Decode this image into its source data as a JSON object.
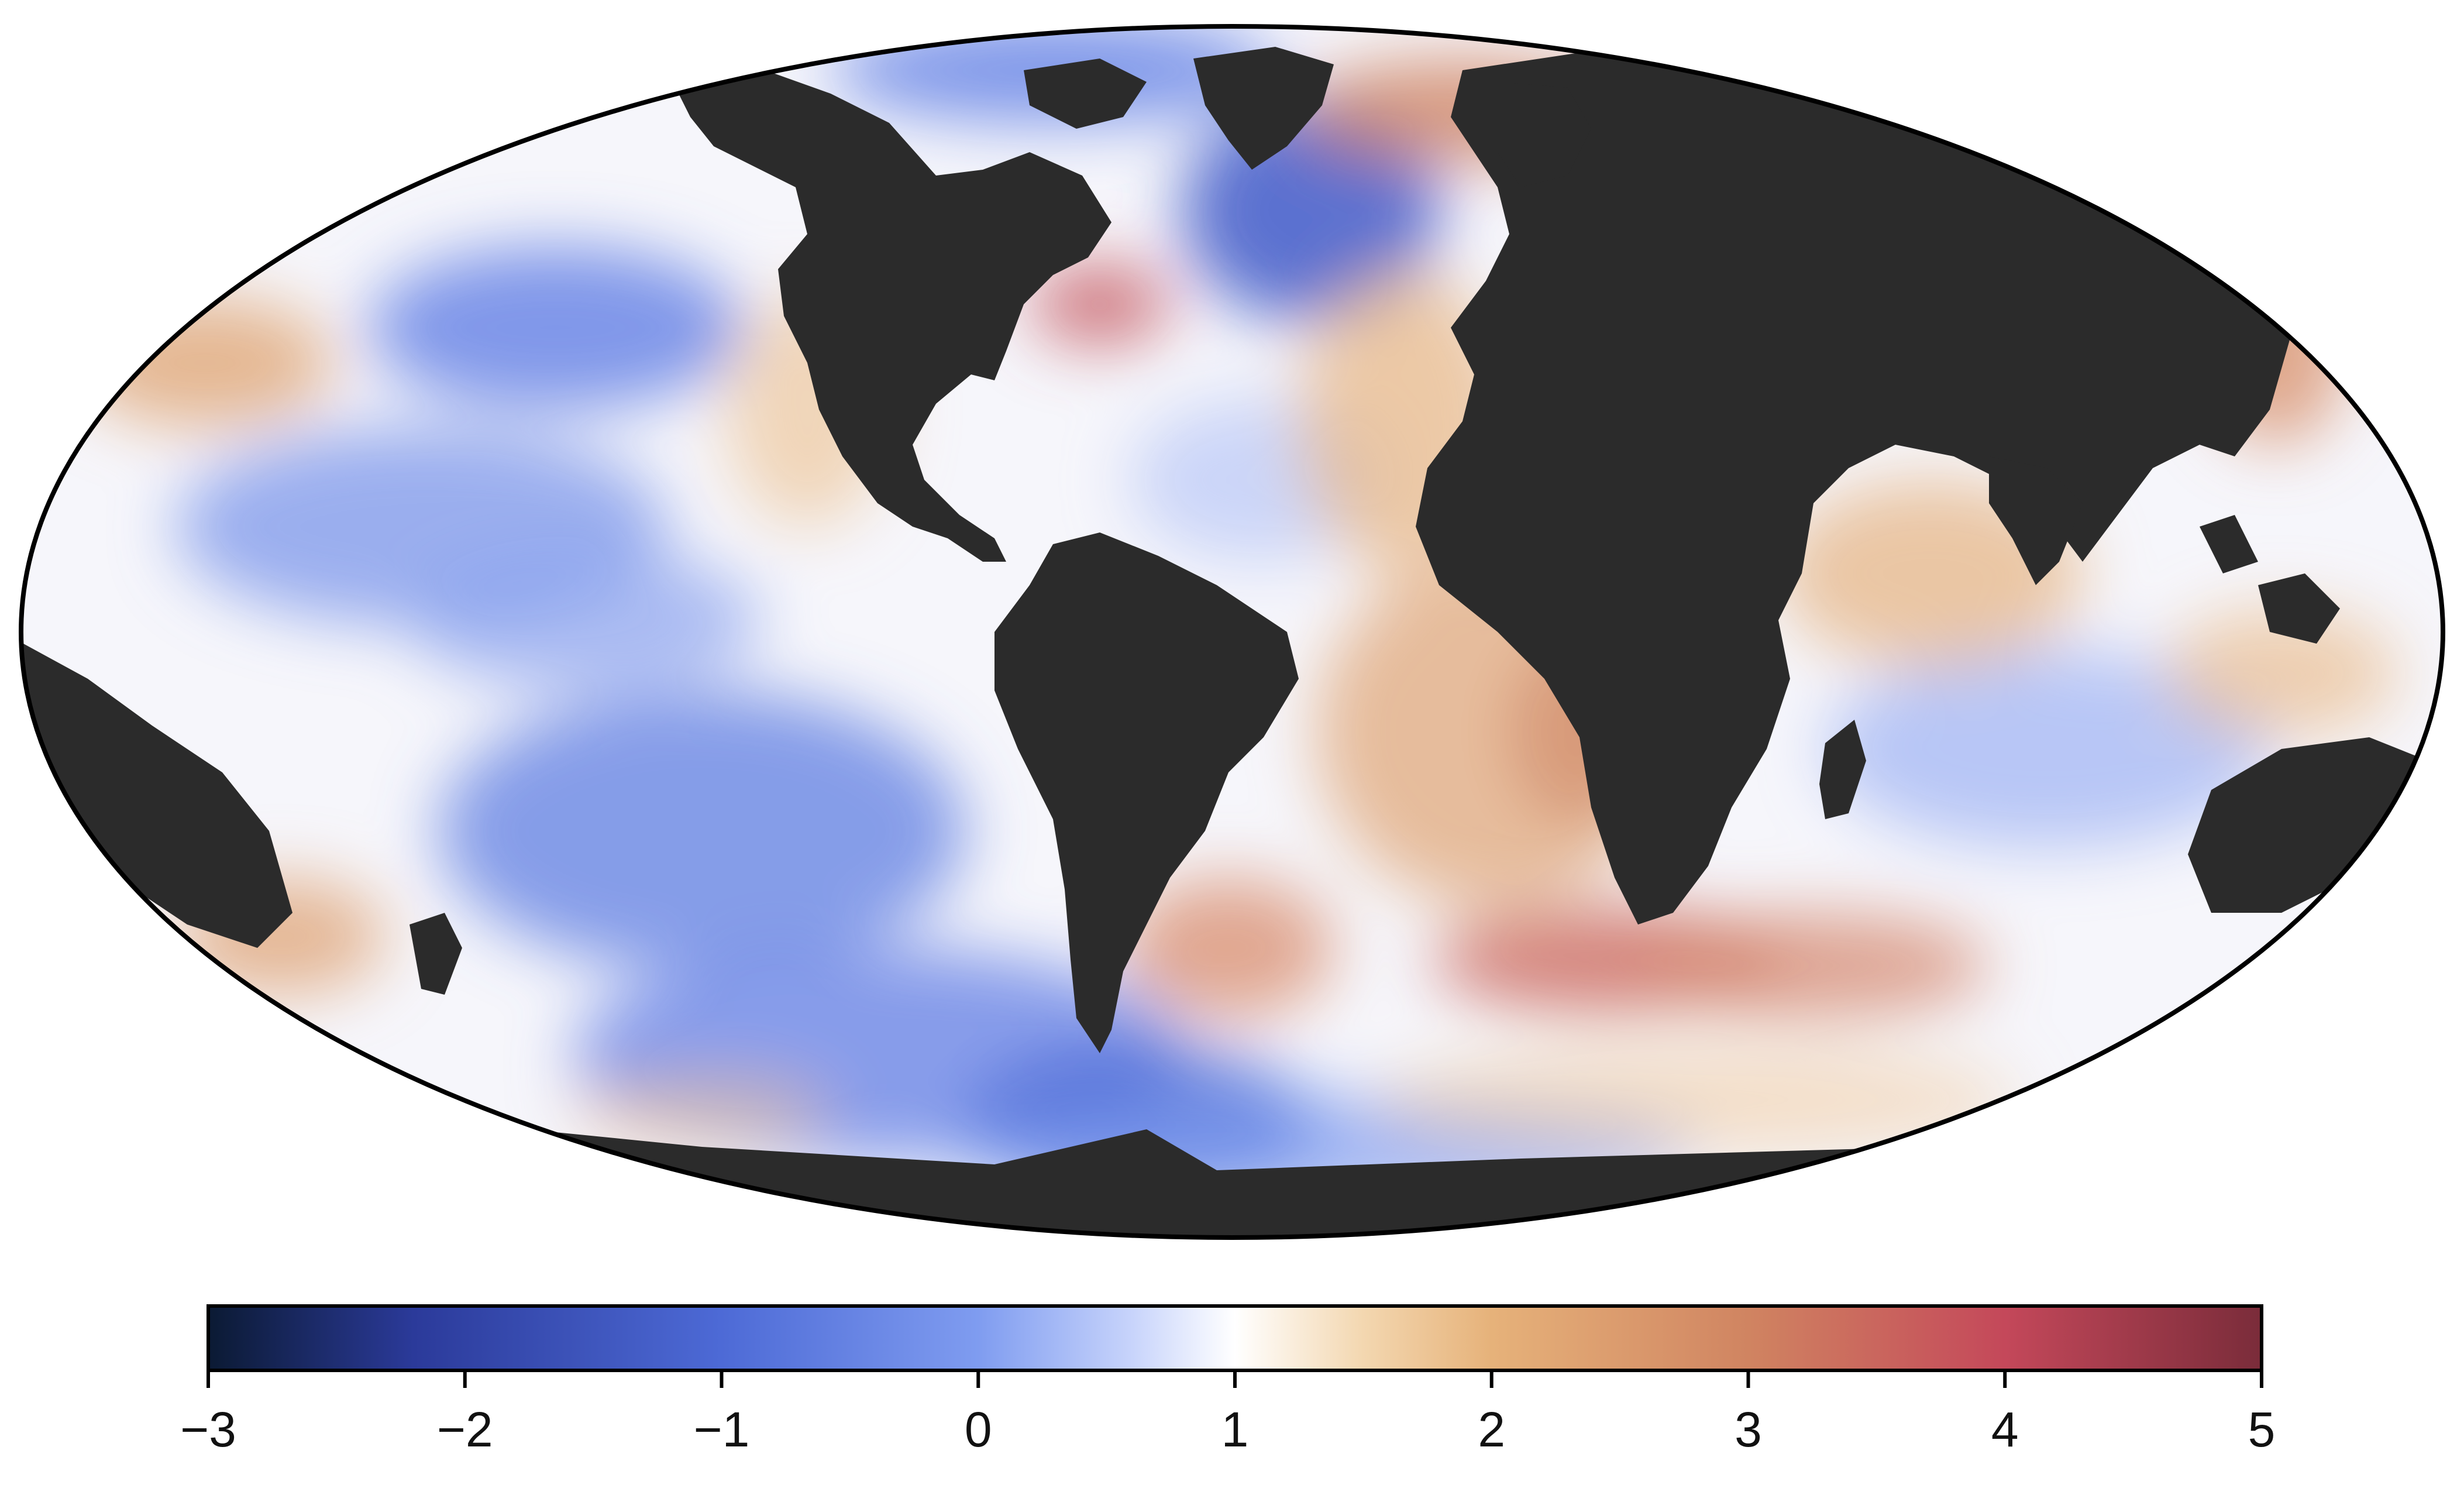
{
  "colorbar": {
    "min": -3,
    "max": 5,
    "ticks": [
      "−3",
      "−2",
      "−1",
      "0",
      "1",
      "2",
      "3",
      "4",
      "5"
    ],
    "tick_values": [
      -3,
      -2,
      -1,
      0,
      1,
      2,
      3,
      4,
      5
    ],
    "stops": [
      {
        "value": -3.0,
        "color": "#0b1a33"
      },
      {
        "value": -2.2,
        "color": "#2b3a9a"
      },
      {
        "value": -1.0,
        "color": "#4d6ad6"
      },
      {
        "value": 0.0,
        "color": "#7f9cf0"
      },
      {
        "value": 0.6,
        "color": "#c8d4fb"
      },
      {
        "value": 1.0,
        "color": "#ffffff"
      },
      {
        "value": 1.5,
        "color": "#f3d7b0"
      },
      {
        "value": 2.0,
        "color": "#e6b27a"
      },
      {
        "value": 3.0,
        "color": "#d08461"
      },
      {
        "value": 4.0,
        "color": "#c4485a"
      },
      {
        "value": 5.0,
        "color": "#7a2c3a"
      }
    ]
  },
  "map": {
    "projection": "mollweide",
    "land_color": "#2b2b2b",
    "ocean_base_color": "#f6f6fb",
    "border_color": "#000000"
  }
}
